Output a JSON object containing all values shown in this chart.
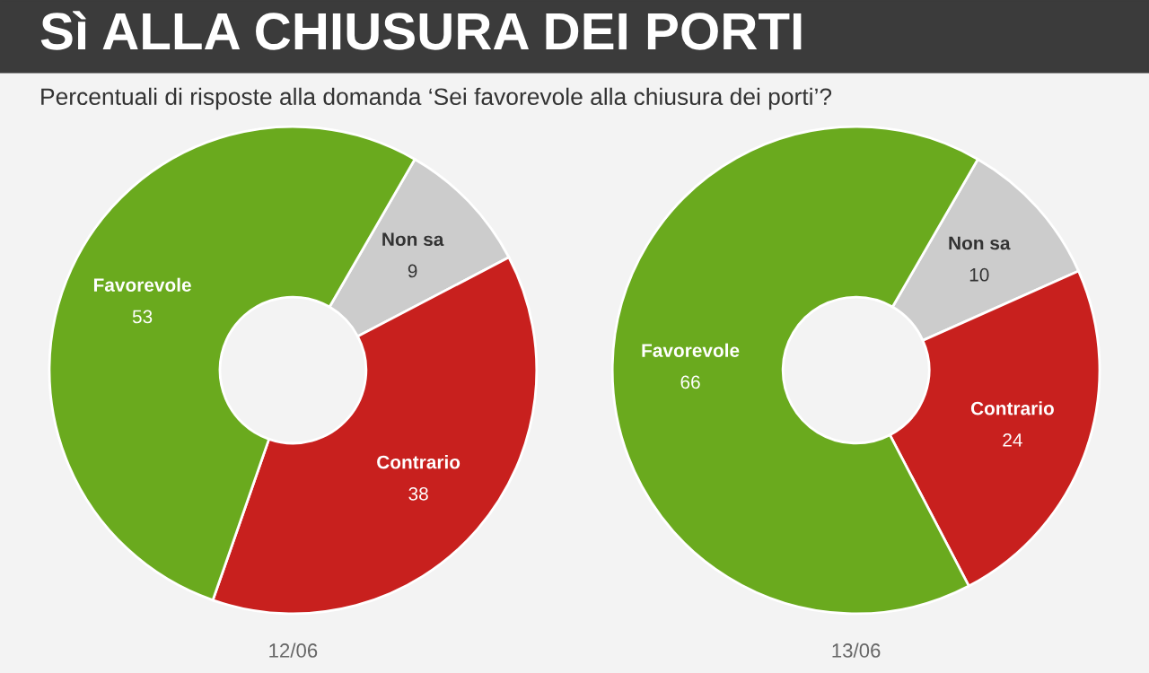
{
  "chart_data": [
    {
      "type": "donut",
      "title": "Sì ALLA CHIUSURA DEI PORTI",
      "subtitle": "Percentuali di risposte alla domanda ‘Sei favorevole alla chiusura dei porti’?",
      "categories": [
        "Non sa",
        "Contrario",
        "Favorevole"
      ],
      "values": [
        9,
        38,
        53
      ],
      "colors": [
        "#cccccc",
        "#c8201e",
        "#6aaa1e"
      ],
      "data_labels": true,
      "annotations": [
        "12/06"
      ]
    },
    {
      "type": "donut",
      "categories": [
        "Non sa",
        "Contrario",
        "Favorevole"
      ],
      "values": [
        10,
        24,
        66
      ],
      "colors": [
        "#cccccc",
        "#c8201e",
        "#6aaa1e"
      ],
      "data_labels": true,
      "annotations": [
        "13/06"
      ]
    }
  ]
}
